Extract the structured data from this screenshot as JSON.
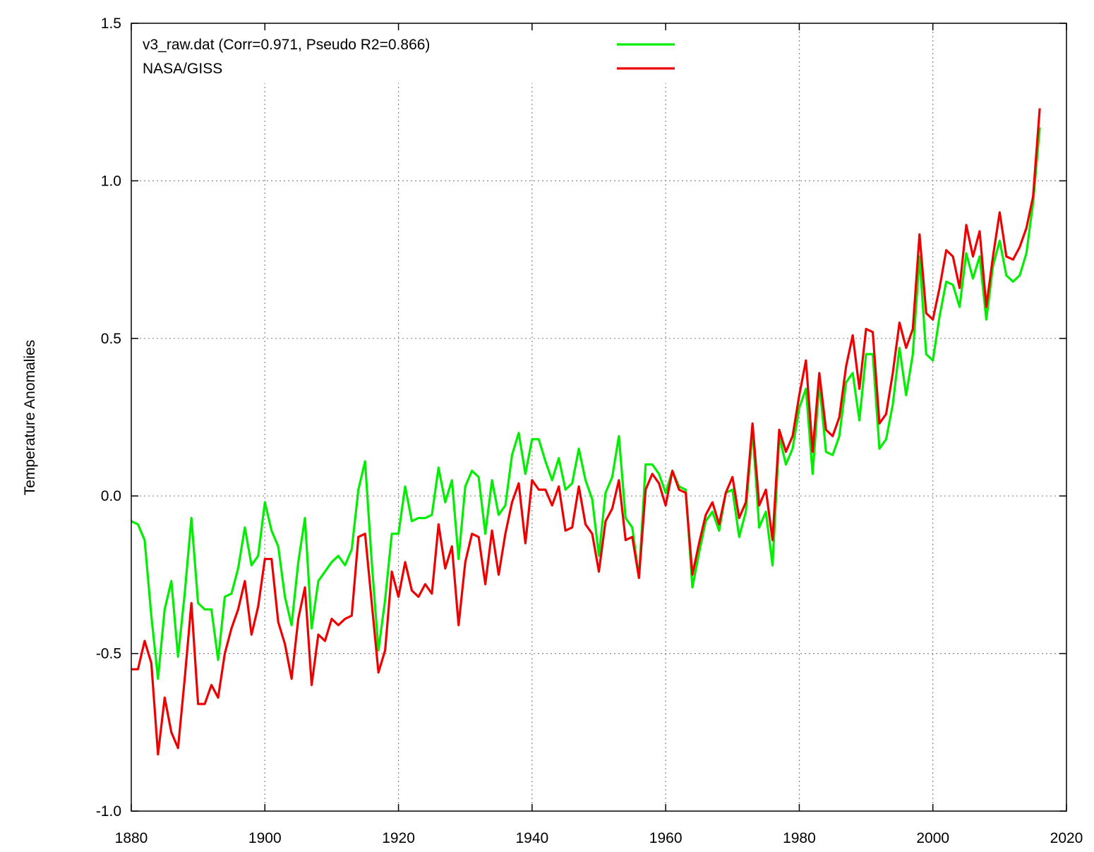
{
  "chart_data": {
    "type": "line",
    "title": "",
    "xlabel": "",
    "ylabel": "Temperature Anomalies",
    "xlim": [
      1880,
      2020
    ],
    "ylim": [
      -1.0,
      1.5
    ],
    "xticks": [
      1880,
      1900,
      1920,
      1940,
      1960,
      1980,
      2000,
      2020
    ],
    "xtick_labels": [
      "1880",
      "1900",
      "1920",
      "1940",
      "1960",
      "1980",
      "2000",
      "2020"
    ],
    "yticks": [
      -1.0,
      -0.5,
      0.0,
      0.5,
      1.0,
      1.5
    ],
    "ytick_labels": [
      "-1.0",
      "-0.5",
      "0.0",
      "0.5",
      "1.0",
      "1.5"
    ],
    "grid": true,
    "legend_position": "top-left",
    "x_start": 1880,
    "series": [
      {
        "name": "v3_raw.dat (Corr=0.971,  Pseudo R2=0.866)",
        "color": "#00ee00",
        "values": [
          -0.08,
          -0.09,
          -0.14,
          -0.38,
          -0.58,
          -0.36,
          -0.27,
          -0.51,
          -0.31,
          -0.07,
          -0.34,
          -0.36,
          -0.36,
          -0.52,
          -0.32,
          -0.31,
          -0.23,
          -0.1,
          -0.22,
          -0.19,
          -0.02,
          -0.11,
          -0.16,
          -0.32,
          -0.41,
          -0.21,
          -0.07,
          -0.42,
          -0.27,
          -0.24,
          -0.21,
          -0.19,
          -0.22,
          -0.17,
          0.02,
          0.11,
          -0.21,
          -0.49,
          -0.33,
          -0.12,
          -0.12,
          0.03,
          -0.08,
          -0.07,
          -0.07,
          -0.06,
          0.09,
          -0.02,
          0.05,
          -0.2,
          0.03,
          0.08,
          0.06,
          -0.12,
          0.05,
          -0.06,
          -0.03,
          0.13,
          0.2,
          0.07,
          0.18,
          0.18,
          0.11,
          0.05,
          0.12,
          0.02,
          0.04,
          0.15,
          0.05,
          -0.01,
          -0.19,
          0.01,
          0.06,
          0.19,
          -0.07,
          -0.1,
          -0.26,
          0.1,
          0.1,
          0.07,
          0.01,
          0.08,
          0.03,
          0.02,
          -0.29,
          -0.18,
          -0.08,
          -0.05,
          -0.11,
          0.01,
          0.02,
          -0.13,
          -0.05,
          0.21,
          -0.1,
          -0.05,
          -0.22,
          0.19,
          0.1,
          0.15,
          0.28,
          0.34,
          0.07,
          0.36,
          0.14,
          0.13,
          0.19,
          0.36,
          0.39,
          0.24,
          0.45,
          0.45,
          0.15,
          0.18,
          0.29,
          0.47,
          0.32,
          0.45,
          0.76,
          0.45,
          0.43,
          0.57,
          0.68,
          0.67,
          0.6,
          0.77,
          0.69,
          0.76,
          0.56,
          0.73,
          0.81,
          0.7,
          0.68,
          0.7,
          0.77,
          0.93,
          1.17
        ]
      },
      {
        "name": "NASA/GISS",
        "color": "#ee0000",
        "values": [
          -0.55,
          -0.55,
          -0.46,
          -0.53,
          -0.82,
          -0.64,
          -0.75,
          -0.8,
          -0.58,
          -0.34,
          -0.66,
          -0.66,
          -0.6,
          -0.64,
          -0.5,
          -0.42,
          -0.36,
          -0.27,
          -0.44,
          -0.35,
          -0.2,
          -0.2,
          -0.4,
          -0.47,
          -0.58,
          -0.39,
          -0.29,
          -0.6,
          -0.44,
          -0.46,
          -0.39,
          -0.41,
          -0.39,
          -0.38,
          -0.13,
          -0.12,
          -0.34,
          -0.56,
          -0.49,
          -0.24,
          -0.32,
          -0.21,
          -0.3,
          -0.32,
          -0.28,
          -0.31,
          -0.09,
          -0.23,
          -0.16,
          -0.41,
          -0.21,
          -0.12,
          -0.13,
          -0.28,
          -0.11,
          -0.25,
          -0.12,
          -0.02,
          0.04,
          -0.15,
          0.05,
          0.02,
          0.02,
          -0.03,
          0.03,
          -0.11,
          -0.1,
          0.03,
          -0.09,
          -0.12,
          -0.24,
          -0.08,
          -0.04,
          0.05,
          -0.14,
          -0.13,
          -0.26,
          0.02,
          0.07,
          0.04,
          -0.03,
          0.08,
          0.02,
          0.01,
          -0.25,
          -0.15,
          -0.06,
          -0.02,
          -0.09,
          0.01,
          0.06,
          -0.07,
          -0.02,
          0.23,
          -0.03,
          0.02,
          -0.14,
          0.21,
          0.14,
          0.19,
          0.32,
          0.43,
          0.14,
          0.39,
          0.21,
          0.19,
          0.25,
          0.41,
          0.51,
          0.34,
          0.53,
          0.52,
          0.23,
          0.26,
          0.39,
          0.55,
          0.47,
          0.53,
          0.83,
          0.58,
          0.56,
          0.66,
          0.78,
          0.76,
          0.66,
          0.86,
          0.76,
          0.84,
          0.6,
          0.76,
          0.9,
          0.76,
          0.75,
          0.79,
          0.85,
          0.95,
          1.23
        ]
      }
    ]
  }
}
